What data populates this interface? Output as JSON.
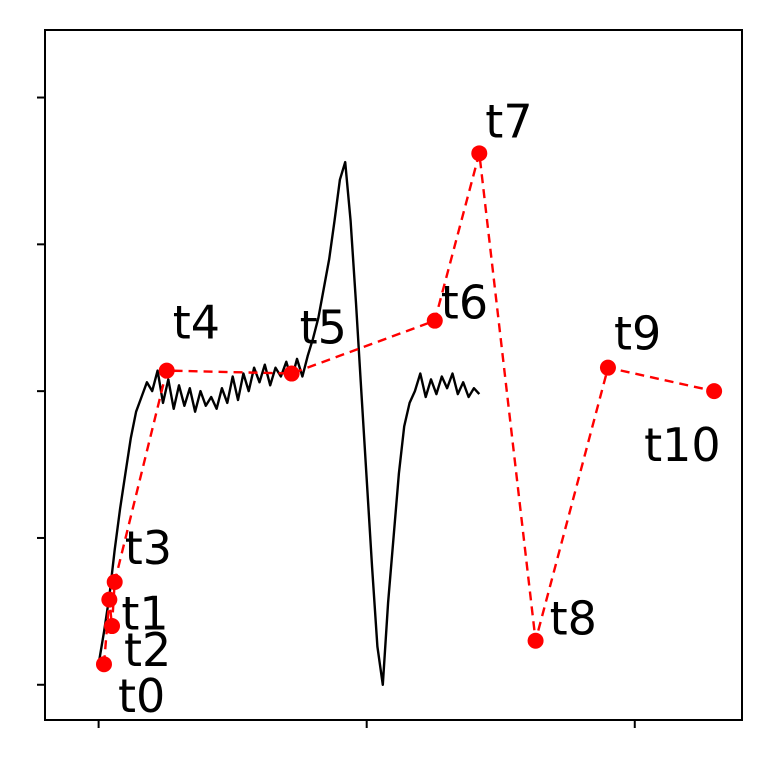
{
  "chart_data": {
    "type": "line",
    "title": "",
    "xlabel": "",
    "ylabel": "",
    "xlim": [
      -0.1,
      1.2
    ],
    "ylim": [
      -0.12,
      2.23
    ],
    "grid": false,
    "legend": "none",
    "colors": {
      "signal": "#000000",
      "keypoints": "#ff0000"
    },
    "signal": [
      [
        0.0,
        0.07
      ],
      [
        0.01,
        0.18
      ],
      [
        0.02,
        0.3
      ],
      [
        0.03,
        0.46
      ],
      [
        0.04,
        0.6
      ],
      [
        0.05,
        0.72
      ],
      [
        0.06,
        0.84
      ],
      [
        0.07,
        0.93
      ],
      [
        0.08,
        0.98
      ],
      [
        0.09,
        1.03
      ],
      [
        0.1,
        1.0
      ],
      [
        0.11,
        1.07
      ],
      [
        0.12,
        0.96
      ],
      [
        0.13,
        1.04
      ],
      [
        0.14,
        0.94
      ],
      [
        0.15,
        1.02
      ],
      [
        0.16,
        0.95
      ],
      [
        0.17,
        1.01
      ],
      [
        0.18,
        0.93
      ],
      [
        0.19,
        1.0
      ],
      [
        0.2,
        0.95
      ],
      [
        0.21,
        0.98
      ],
      [
        0.22,
        0.94
      ],
      [
        0.23,
        1.01
      ],
      [
        0.24,
        0.96
      ],
      [
        0.25,
        1.05
      ],
      [
        0.26,
        0.97
      ],
      [
        0.27,
        1.06
      ],
      [
        0.28,
        1.0
      ],
      [
        0.29,
        1.08
      ],
      [
        0.3,
        1.03
      ],
      [
        0.31,
        1.09
      ],
      [
        0.32,
        1.02
      ],
      [
        0.33,
        1.08
      ],
      [
        0.34,
        1.05
      ],
      [
        0.35,
        1.1
      ],
      [
        0.36,
        1.04
      ],
      [
        0.37,
        1.11
      ],
      [
        0.38,
        1.05
      ],
      [
        0.39,
        1.12
      ],
      [
        0.4,
        1.18
      ],
      [
        0.41,
        1.25
      ],
      [
        0.42,
        1.35
      ],
      [
        0.43,
        1.45
      ],
      [
        0.44,
        1.58
      ],
      [
        0.45,
        1.72
      ],
      [
        0.46,
        1.78
      ],
      [
        0.47,
        1.58
      ],
      [
        0.48,
        1.3
      ],
      [
        0.49,
        1.0
      ],
      [
        0.5,
        0.7
      ],
      [
        0.51,
        0.4
      ],
      [
        0.52,
        0.13
      ],
      [
        0.53,
        0.0
      ],
      [
        0.54,
        0.28
      ],
      [
        0.55,
        0.5
      ],
      [
        0.56,
        0.72
      ],
      [
        0.57,
        0.88
      ],
      [
        0.58,
        0.96
      ],
      [
        0.59,
        1.0
      ],
      [
        0.6,
        1.06
      ],
      [
        0.61,
        0.98
      ],
      [
        0.62,
        1.04
      ],
      [
        0.63,
        0.99
      ],
      [
        0.64,
        1.05
      ],
      [
        0.65,
        1.01
      ],
      [
        0.66,
        1.06
      ],
      [
        0.67,
        0.99
      ],
      [
        0.68,
        1.03
      ],
      [
        0.69,
        0.98
      ],
      [
        0.7,
        1.01
      ],
      [
        0.71,
        0.99
      ]
    ],
    "keypoints": [
      {
        "label": "t0",
        "x": 0.01,
        "y": 0.07
      },
      {
        "label": "t1",
        "x": 0.02,
        "y": 0.29
      },
      {
        "label": "t2",
        "x": 0.025,
        "y": 0.2
      },
      {
        "label": "t3",
        "x": 0.03,
        "y": 0.35
      },
      {
        "label": "t4",
        "x": 0.127,
        "y": 1.07
      },
      {
        "label": "t5",
        "x": 0.36,
        "y": 1.06
      },
      {
        "label": "t6",
        "x": 0.627,
        "y": 1.24
      },
      {
        "label": "t7",
        "x": 0.71,
        "y": 1.81
      },
      {
        "label": "t8",
        "x": 0.815,
        "y": 0.15
      },
      {
        "label": "t9",
        "x": 0.95,
        "y": 1.08
      },
      {
        "label": "t10",
        "x": 1.148,
        "y": 1.0
      }
    ]
  }
}
